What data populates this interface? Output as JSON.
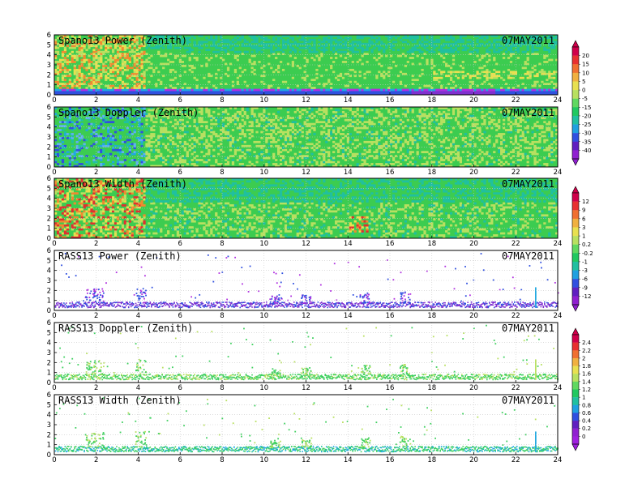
{
  "figure": {
    "date_label": "07MAY2011"
  },
  "chart_data": [
    {
      "type": "heatmap",
      "title": "Spano13 Power (Zenith)",
      "date": "07MAY2011",
      "xlim": [
        0,
        24
      ],
      "ylim": [
        0,
        6
      ],
      "x_ticks": [
        "0",
        "2",
        "4",
        "6",
        "8",
        "10",
        "12",
        "14",
        "16",
        "18",
        "20",
        "22",
        "24"
      ],
      "y_ticks": [
        "0",
        "1",
        "2",
        "3",
        "4",
        "5",
        "6"
      ],
      "grid": true,
      "colorbar": "scale1",
      "description_values": {
        "typical": 0,
        "low_band_0_to_0.7": -35
      }
    },
    {
      "type": "heatmap",
      "title": "Spano13 Doppler (Zenith)",
      "date": "07MAY2011",
      "xlim": [
        0,
        24
      ],
      "ylim": [
        0,
        6
      ],
      "x_ticks": [
        "0",
        "2",
        "4",
        "6",
        "8",
        "10",
        "12",
        "14",
        "16",
        "18",
        "20",
        "22",
        "24"
      ],
      "y_ticks": [
        "0",
        "1",
        "2",
        "3",
        "4",
        "5",
        "6"
      ],
      "grid": true,
      "colorbar": "scale1"
    },
    {
      "type": "heatmap",
      "title": "Spano13 Width (Zenith)",
      "date": "07MAY2011",
      "xlim": [
        0,
        24
      ],
      "ylim": [
        0,
        6
      ],
      "x_ticks": [
        "0",
        "2",
        "4",
        "6",
        "8",
        "10",
        "12",
        "14",
        "16",
        "18",
        "20",
        "22",
        "24"
      ],
      "y_ticks": [
        "0",
        "1",
        "2",
        "3",
        "4",
        "5",
        "6"
      ],
      "grid": true,
      "colorbar": "scale2"
    },
    {
      "type": "scatter",
      "title": "RASS13 Power (Zenith)",
      "date": "07MAY2011",
      "xlim": [
        0,
        24
      ],
      "ylim": [
        0,
        6
      ],
      "x_ticks": [
        "0",
        "2",
        "4",
        "6",
        "8",
        "10",
        "12",
        "14",
        "16",
        "18",
        "20",
        "22",
        "24"
      ],
      "y_ticks": [
        "0",
        "1",
        "2",
        "3",
        "4",
        "5",
        "6"
      ],
      "grid": true,
      "colorbar": "scale2"
    },
    {
      "type": "scatter",
      "title": "RASS13 Doppler (Zenith)",
      "date": "07MAY2011",
      "xlim": [
        0,
        24
      ],
      "ylim": [
        0,
        6
      ],
      "x_ticks": [
        "0",
        "2",
        "4",
        "6",
        "8",
        "10",
        "12",
        "14",
        "16",
        "18",
        "20",
        "22",
        "24"
      ],
      "y_ticks": [
        "0",
        "1",
        "2",
        "3",
        "4",
        "5",
        "6"
      ],
      "grid": true,
      "colorbar": "scale3"
    },
    {
      "type": "scatter",
      "title": "RASS13 Width (Zenith)",
      "date": "07MAY2011",
      "xlim": [
        0,
        24
      ],
      "ylim": [
        0,
        6
      ],
      "x_ticks": [
        "0",
        "2",
        "4",
        "6",
        "8",
        "10",
        "12",
        "14",
        "16",
        "18",
        "20",
        "22",
        "24"
      ],
      "y_ticks": [
        "0",
        "1",
        "2",
        "3",
        "4",
        "5",
        "6"
      ],
      "grid": true,
      "colorbar": "scale3"
    }
  ],
  "colorbars": {
    "scale1": {
      "labels": [
        "20",
        "15",
        "10",
        "5",
        "0",
        "-5",
        "-15",
        "-20",
        "-25",
        "-30",
        "-35",
        "-40"
      ],
      "colors": [
        "#d0004a",
        "#e83030",
        "#f07030",
        "#f0b040",
        "#e8e050",
        "#b8e060",
        "#60d860",
        "#20c860",
        "#20c0a0",
        "#20a0e0",
        "#3050e0",
        "#6020c0",
        "#9020d0"
      ]
    },
    "scale2": {
      "labels": [
        "12",
        "9",
        "6",
        "3",
        "1",
        "0.2",
        "-0.2",
        "-1",
        "-3",
        "-6",
        "-9",
        "-12"
      ],
      "colors": [
        "#d0004a",
        "#e83030",
        "#f07030",
        "#f0b040",
        "#e8e050",
        "#b8e060",
        "#60d860",
        "#20c860",
        "#20c0a0",
        "#20a0e0",
        "#3050e0",
        "#6020c0",
        "#9020d0"
      ]
    },
    "scale3": {
      "labels": [
        "2.4",
        "2.2",
        "2",
        "1.8",
        "1.6",
        "1.4",
        "1.2",
        "1",
        "0.8",
        "0.6",
        "0.4",
        "0.2",
        "0"
      ],
      "colors": [
        "#d0004a",
        "#e83030",
        "#f07030",
        "#f0b040",
        "#e8e050",
        "#b8e060",
        "#60d860",
        "#20c860",
        "#20c0a0",
        "#20a0e0",
        "#3050e0",
        "#6020c0",
        "#9020d0",
        "#a020e0"
      ]
    }
  }
}
